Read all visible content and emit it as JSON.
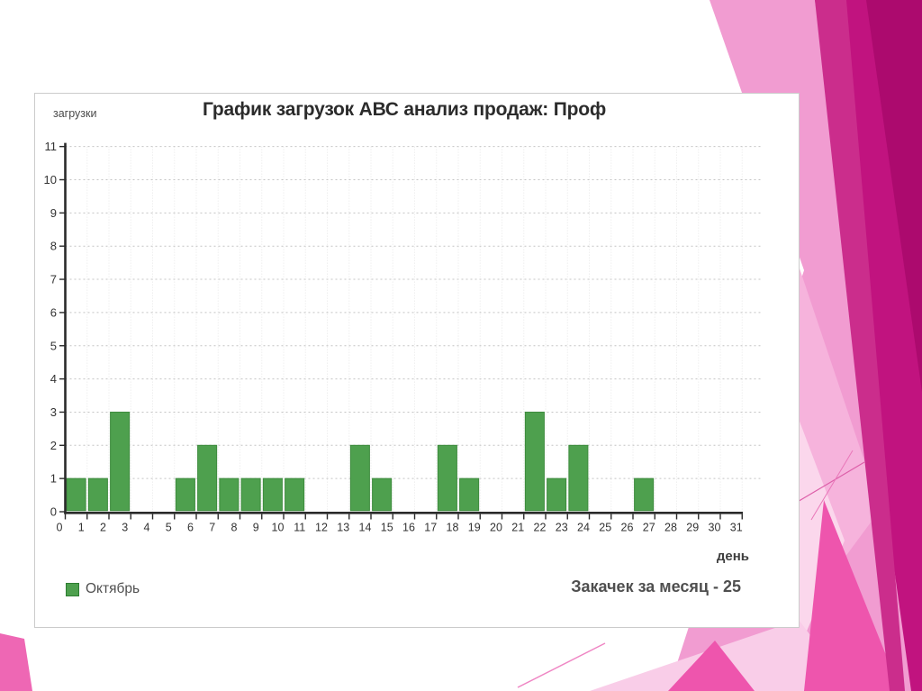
{
  "chart": {
    "title": "График загрузок АВС анализ продаж: Проф",
    "y_axis_title": "загрузки",
    "x_axis_title": "день",
    "legend_label": "Октябрь",
    "summary_text": "Закачек за месяц - 25"
  },
  "chart_data": {
    "type": "bar",
    "title": "График загрузок АВС анализ продаж: Проф",
    "xlabel": "день",
    "ylabel": "загрузки",
    "series_name": "Октябрь",
    "categories": [
      0,
      1,
      2,
      3,
      4,
      5,
      6,
      7,
      8,
      9,
      10,
      11,
      12,
      13,
      14,
      15,
      16,
      17,
      18,
      19,
      20,
      21,
      22,
      23,
      24,
      25,
      26,
      27,
      28,
      29,
      30,
      31
    ],
    "values": [
      0,
      1,
      1,
      3,
      0,
      0,
      1,
      2,
      1,
      1,
      1,
      1,
      0,
      0,
      2,
      1,
      0,
      0,
      2,
      1,
      0,
      0,
      3,
      1,
      2,
      0,
      0,
      1,
      0,
      0,
      0,
      0
    ],
    "y_ticks": [
      0,
      1,
      2,
      3,
      4,
      5,
      6,
      7,
      8,
      9,
      10,
      11
    ],
    "ylim": [
      0,
      11
    ],
    "grid": true,
    "legend_position": "bottom-left",
    "total_downloads": 25,
    "annotation": "Закачек за месяц - 25",
    "bar_color": "#4ea04e",
    "bar_border_color": "#3d8b3d",
    "axis_color": "#2a2a2a",
    "grid_color": "#c4c4c4",
    "label_color": "#333333"
  },
  "theme": {
    "slide_background": "#ffffff",
    "accent_light_pink": "#f19cd1",
    "accent_bright_pink": "#ee55ad",
    "accent_pale_pink": "#fbd7ec",
    "accent_dark_magenta": "#c1137f",
    "accent_deep_magenta": "#ac0a6e"
  }
}
